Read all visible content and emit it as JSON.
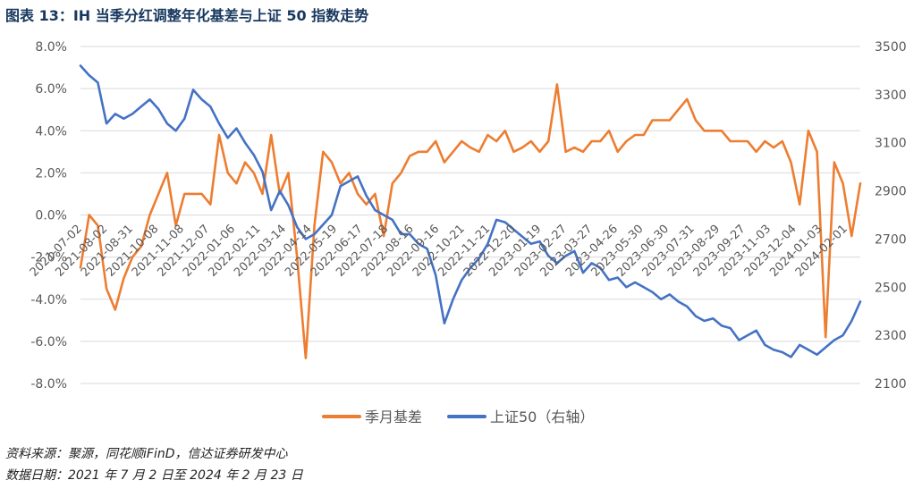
{
  "title": "图表 13：IH 当季分红调整年化基差与上证 50 指数走势",
  "notes": {
    "source": "资料来源：聚源，同花顺iFinD，信达证券研发中心",
    "date": "数据日期：2021 年 7 月 2 日至 2024 年 2 月 23 日"
  },
  "colors": {
    "basis": "#ED7D31",
    "index": "#4472C4",
    "grid": "#D9D9D9",
    "tick": "#595959"
  },
  "chart_data": {
    "type": "line",
    "title": "图表 13：IH 当季分红调整年化基差与上证 50 指数走势",
    "x_tick_labels": [
      "2021-07-02",
      "2021-08-02",
      "2021-08-31",
      "2021-10-08",
      "2021-11-08",
      "2021-12-07",
      "2022-01-06",
      "2022-02-11",
      "2022-03-14",
      "2022-04-14",
      "2022-05-19",
      "2022-06-17",
      "2022-07-18",
      "2022-08-16",
      "2022-09-16",
      "2022-10-21",
      "2022-11-21",
      "2022-12-20",
      "2023-01-19",
      "2023-02-27",
      "2023-03-27",
      "2023-04-26",
      "2023-05-30",
      "2023-06-30",
      "2023-07-31",
      "2023-08-29",
      "2023-09-27",
      "2023-11-03",
      "2023-12-04",
      "2024-01-03",
      "2024-02-01"
    ],
    "y_left": {
      "min": -8,
      "max": 8,
      "step": 2,
      "ticks": [
        "-8.0%",
        "-6.0%",
        "-4.0%",
        "-2.0%",
        "0.0%",
        "2.0%",
        "4.0%",
        "6.0%",
        "8.0%"
      ]
    },
    "y_right": {
      "min": 2100,
      "max": 3500,
      "step": 200,
      "ticks": [
        "2100",
        "2300",
        "2500",
        "2700",
        "2900",
        "3100",
        "3300",
        "3500"
      ]
    },
    "legend": [
      "季月基差",
      "上证50（右轴）"
    ],
    "legend_position": "bottom",
    "series": [
      {
        "name": "季月基差",
        "axis": "left",
        "color": "#ED7D31",
        "values": [
          -2.5,
          0.0,
          -0.5,
          -3.5,
          -4.5,
          -3.0,
          -2.0,
          -1.5,
          0.0,
          1.0,
          2.0,
          -0.5,
          1.0,
          1.0,
          1.0,
          0.5,
          3.8,
          2.0,
          1.5,
          2.5,
          2.0,
          1.0,
          3.8,
          1.0,
          2.0,
          -2.0,
          -6.8,
          -0.5,
          3.0,
          2.5,
          1.5,
          2.0,
          1.0,
          0.5,
          1.0,
          -1.0,
          1.5,
          2.0,
          2.8,
          3.0,
          3.0,
          3.5,
          2.5,
          3.0,
          3.5,
          3.2,
          3.0,
          3.8,
          3.5,
          4.0,
          3.0,
          3.2,
          3.5,
          3.0,
          3.5,
          6.2,
          3.0,
          3.2,
          3.0,
          3.5,
          3.5,
          4.0,
          3.0,
          3.5,
          3.8,
          3.8,
          4.5,
          4.5,
          4.5,
          5.0,
          5.5,
          4.5,
          4.0,
          4.0,
          4.0,
          3.5,
          3.5,
          3.5,
          3.0,
          3.5,
          3.2,
          3.5,
          2.5,
          0.5,
          4.0,
          3.0,
          -5.8,
          2.5,
          1.5,
          -1.0,
          1.5
        ]
      },
      {
        "name": "上证50（右轴）",
        "axis": "right",
        "color": "#4472C4",
        "values": [
          3420,
          3380,
          3350,
          3180,
          3220,
          3200,
          3220,
          3250,
          3280,
          3240,
          3180,
          3150,
          3200,
          3320,
          3280,
          3250,
          3180,
          3120,
          3160,
          3100,
          3050,
          2980,
          2820,
          2900,
          2840,
          2750,
          2700,
          2720,
          2760,
          2800,
          2920,
          2940,
          2960,
          2880,
          2820,
          2800,
          2780,
          2720,
          2720,
          2680,
          2660,
          2550,
          2350,
          2450,
          2530,
          2580,
          2620,
          2680,
          2780,
          2770,
          2740,
          2710,
          2680,
          2690,
          2630,
          2600,
          2630,
          2650,
          2560,
          2600,
          2580,
          2530,
          2540,
          2500,
          2520,
          2500,
          2480,
          2450,
          2470,
          2440,
          2420,
          2380,
          2360,
          2370,
          2340,
          2330,
          2280,
          2300,
          2320,
          2260,
          2240,
          2230,
          2210,
          2260,
          2240,
          2220,
          2250,
          2280,
          2300,
          2360,
          2440
        ]
      }
    ]
  }
}
